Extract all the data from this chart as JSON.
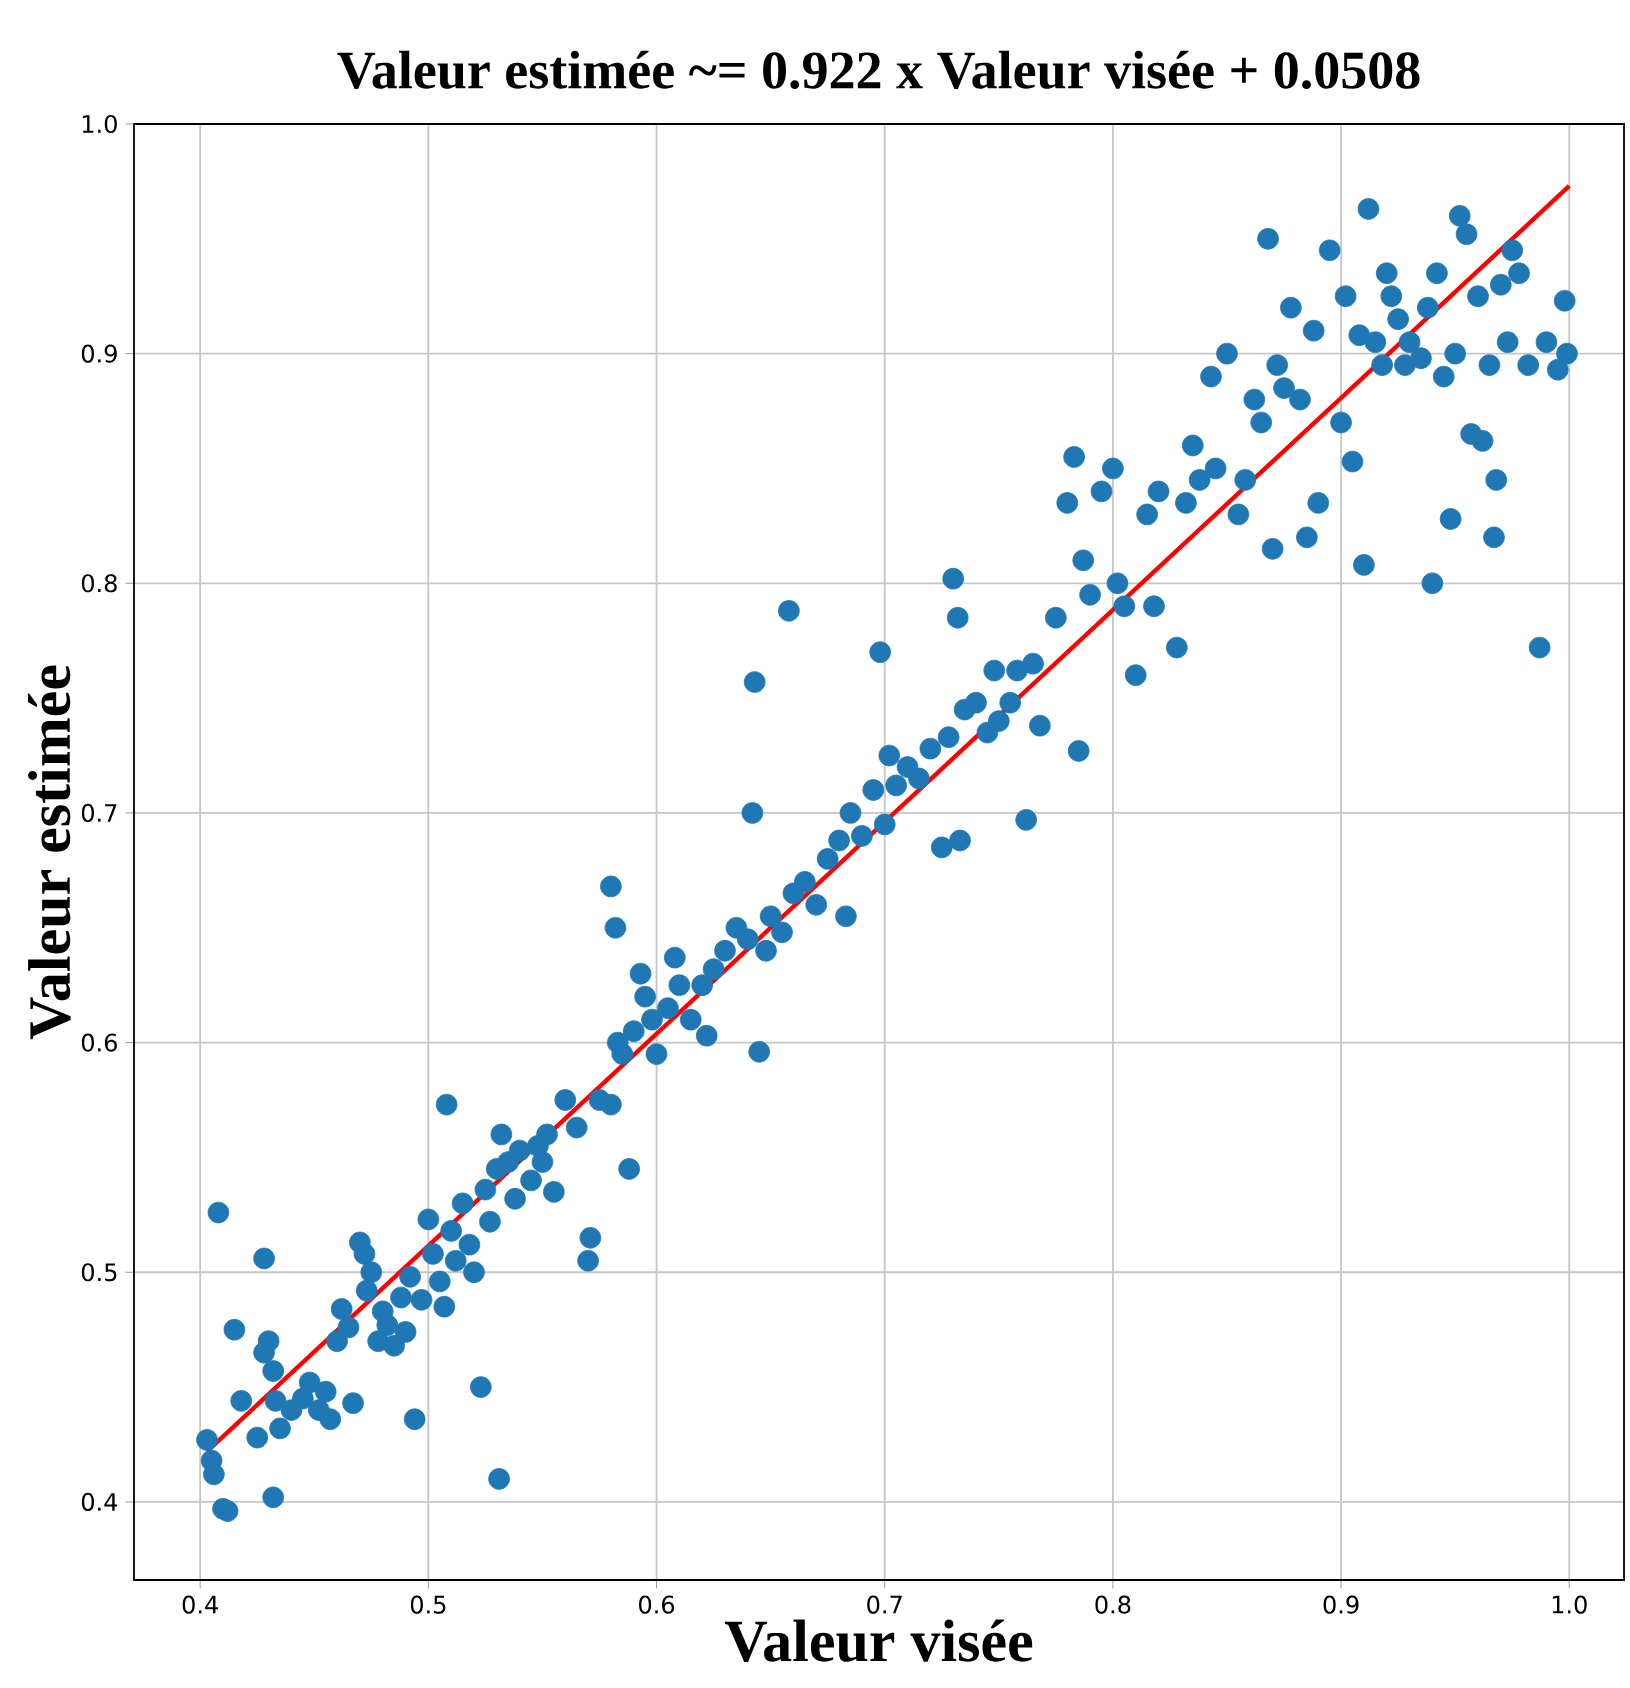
{
  "chart_data": {
    "type": "scatter",
    "title": "Valeur estimée ~= 0.922 x Valeur visée + 0.0508",
    "xlabel": "Valeur visée",
    "ylabel": "Valeur estimée",
    "xlim": [
      0.371,
      1.024
    ],
    "ylim": [
      0.366,
      1.0
    ],
    "xticks": [
      0.4,
      0.5,
      0.6,
      0.7,
      0.8,
      0.9,
      {
        "value": 1.0,
        "label": "1.0"
      }
    ],
    "yticks": [
      0.4,
      0.5,
      0.6,
      0.7,
      0.8,
      0.9,
      {
        "value": 1.0,
        "label": "1.0"
      }
    ],
    "grid": true,
    "series": [
      {
        "color": "#1f77b4",
        "x": [
          0.403,
          0.405,
          0.406,
          0.41,
          0.412,
          0.408,
          0.415,
          0.418,
          0.425,
          0.428,
          0.428,
          0.43,
          0.432,
          0.432,
          0.433,
          0.435,
          0.44,
          0.445,
          0.448,
          0.452,
          0.455,
          0.457,
          0.46,
          0.462,
          0.465,
          0.467,
          0.47,
          0.472,
          0.473,
          0.475,
          0.478,
          0.48,
          0.482,
          0.485,
          0.488,
          0.49,
          0.492,
          0.494,
          0.497,
          0.5,
          0.502,
          0.505,
          0.507,
          0.508,
          0.51,
          0.512,
          0.515,
          0.518,
          0.52,
          0.523,
          0.525,
          0.527,
          0.53,
          0.531,
          0.532,
          0.535,
          0.538,
          0.54,
          0.545,
          0.548,
          0.55,
          0.552,
          0.555,
          0.56,
          0.565,
          0.57,
          0.571,
          0.575,
          0.58,
          0.58,
          0.582,
          0.583,
          0.585,
          0.588,
          0.59,
          0.593,
          0.595,
          0.598,
          0.6,
          0.605,
          0.608,
          0.61,
          0.615,
          0.62,
          0.622,
          0.625,
          0.63,
          0.635,
          0.64,
          0.642,
          0.643,
          0.645,
          0.648,
          0.65,
          0.655,
          0.658,
          0.66,
          0.665,
          0.67,
          0.675,
          0.68,
          0.683,
          0.685,
          0.69,
          0.695,
          0.698,
          0.7,
          0.702,
          0.705,
          0.71,
          0.715,
          0.72,
          0.725,
          0.728,
          0.73,
          0.732,
          0.733,
          0.735,
          0.74,
          0.745,
          0.748,
          0.75,
          0.755,
          0.758,
          0.762,
          0.765,
          0.768,
          0.775,
          0.78,
          0.783,
          0.785,
          0.787,
          0.79,
          0.795,
          0.8,
          0.802,
          0.805,
          0.81,
          0.815,
          0.818,
          0.82,
          0.828,
          0.832,
          0.835,
          0.838,
          0.843,
          0.845,
          0.85,
          0.855,
          0.858,
          0.862,
          0.865,
          0.868,
          0.87,
          0.872,
          0.875,
          0.878,
          0.882,
          0.885,
          0.888,
          0.89,
          0.895,
          0.9,
          0.902,
          0.905,
          0.908,
          0.91,
          0.912,
          0.915,
          0.918,
          0.92,
          0.922,
          0.925,
          0.928,
          0.93,
          0.935,
          0.938,
          0.94,
          0.942,
          0.945,
          0.948,
          0.95,
          0.952,
          0.955,
          0.957,
          0.96,
          0.962,
          0.965,
          0.967,
          0.968,
          0.97,
          0.973,
          0.975,
          0.978,
          0.982,
          0.987,
          0.99,
          0.995,
          0.998,
          0.999
        ],
        "values": [
          0.427,
          0.418,
          0.412,
          0.397,
          0.396,
          0.526,
          0.475,
          0.444,
          0.428,
          0.506,
          0.465,
          0.47,
          0.402,
          0.457,
          0.444,
          0.432,
          0.44,
          0.445,
          0.452,
          0.44,
          0.448,
          0.436,
          0.47,
          0.484,
          0.476,
          0.443,
          0.513,
          0.508,
          0.492,
          0.5,
          0.47,
          0.483,
          0.477,
          0.468,
          0.489,
          0.474,
          0.498,
          0.436,
          0.488,
          0.523,
          0.508,
          0.496,
          0.485,
          0.573,
          0.518,
          0.505,
          0.53,
          0.512,
          0.5,
          0.45,
          0.536,
          0.522,
          0.545,
          0.41,
          0.56,
          0.548,
          0.532,
          0.553,
          0.54,
          0.555,
          0.548,
          0.56,
          0.535,
          0.575,
          0.563,
          0.505,
          0.515,
          0.575,
          0.573,
          0.668,
          0.65,
          0.6,
          0.595,
          0.545,
          0.605,
          0.63,
          0.62,
          0.61,
          0.595,
          0.615,
          0.637,
          0.625,
          0.61,
          0.625,
          0.603,
          0.632,
          0.64,
          0.65,
          0.645,
          0.7,
          0.757,
          0.596,
          0.64,
          0.655,
          0.648,
          0.788,
          0.665,
          0.67,
          0.66,
          0.68,
          0.688,
          0.655,
          0.7,
          0.69,
          0.71,
          0.77,
          0.695,
          0.725,
          0.712,
          0.72,
          0.715,
          0.728,
          0.685,
          0.733,
          0.802,
          0.785,
          0.688,
          0.745,
          0.748,
          0.735,
          0.762,
          0.74,
          0.748,
          0.762,
          0.697,
          0.765,
          0.738,
          0.785,
          0.835,
          0.855,
          0.727,
          0.81,
          0.795,
          0.84,
          0.85,
          0.8,
          0.79,
          0.76,
          0.83,
          0.79,
          0.84,
          0.772,
          0.835,
          0.86,
          0.845,
          0.89,
          0.85,
          0.9,
          0.83,
          0.845,
          0.88,
          0.87,
          0.95,
          0.815,
          0.895,
          0.885,
          0.92,
          0.88,
          0.82,
          0.91,
          0.835,
          0.945,
          0.87,
          0.925,
          0.853,
          0.908,
          0.808,
          0.963,
          0.905,
          0.895,
          0.935,
          0.925,
          0.915,
          0.895,
          0.905,
          0.898,
          0.92,
          0.8,
          0.935,
          0.89,
          0.828,
          0.9,
          0.96,
          0.952,
          0.865,
          0.925,
          0.862,
          0.895,
          0.82,
          0.845,
          0.93,
          0.905,
          0.945,
          0.935,
          0.895,
          0.772,
          0.905,
          0.893,
          0.923,
          0.9
        ]
      },
      {
        "type": "line",
        "color": "#ff0000",
        "x": [
          0.403,
          1.0
        ],
        "values": [
          0.422,
          0.973
        ]
      }
    ]
  }
}
